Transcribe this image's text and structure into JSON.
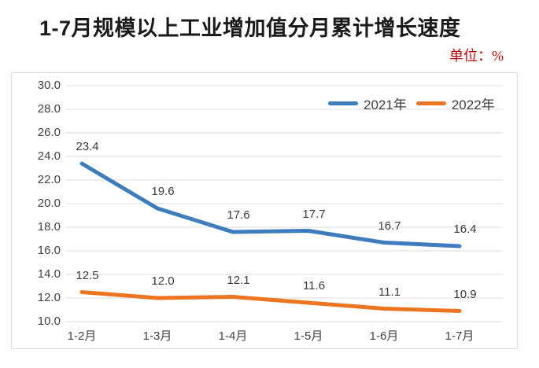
{
  "page": {
    "title": "1-7月规模以上工业增加值分月累计增长速度",
    "unit_label": "单位：%"
  },
  "chart_data": {
    "type": "line",
    "title": "1-7月规模以上工业增加值分月累计增长速度",
    "unit": "%",
    "categories": [
      "1-2月",
      "1-3月",
      "1-4月",
      "1-5月",
      "1-6月",
      "1-7月"
    ],
    "series": [
      {
        "name": "2021年",
        "color": "#3e7cbe",
        "values": [
          23.4,
          19.6,
          17.6,
          17.7,
          16.7,
          16.4
        ]
      },
      {
        "name": "2022年",
        "color": "#ed7421",
        "values": [
          12.5,
          12.0,
          12.1,
          11.6,
          11.1,
          10.9
        ]
      }
    ],
    "ylim": [
      10.0,
      30.0
    ],
    "ytick_step": 2.0,
    "grid": true,
    "legend_position": "top",
    "data_labels": true,
    "colors": {
      "grid": "#d9d9d9",
      "frame_border": "#d9d9d9",
      "axis_text": "#404040",
      "title_text": "#1a1a1a",
      "unit_text": "#c00000"
    }
  }
}
